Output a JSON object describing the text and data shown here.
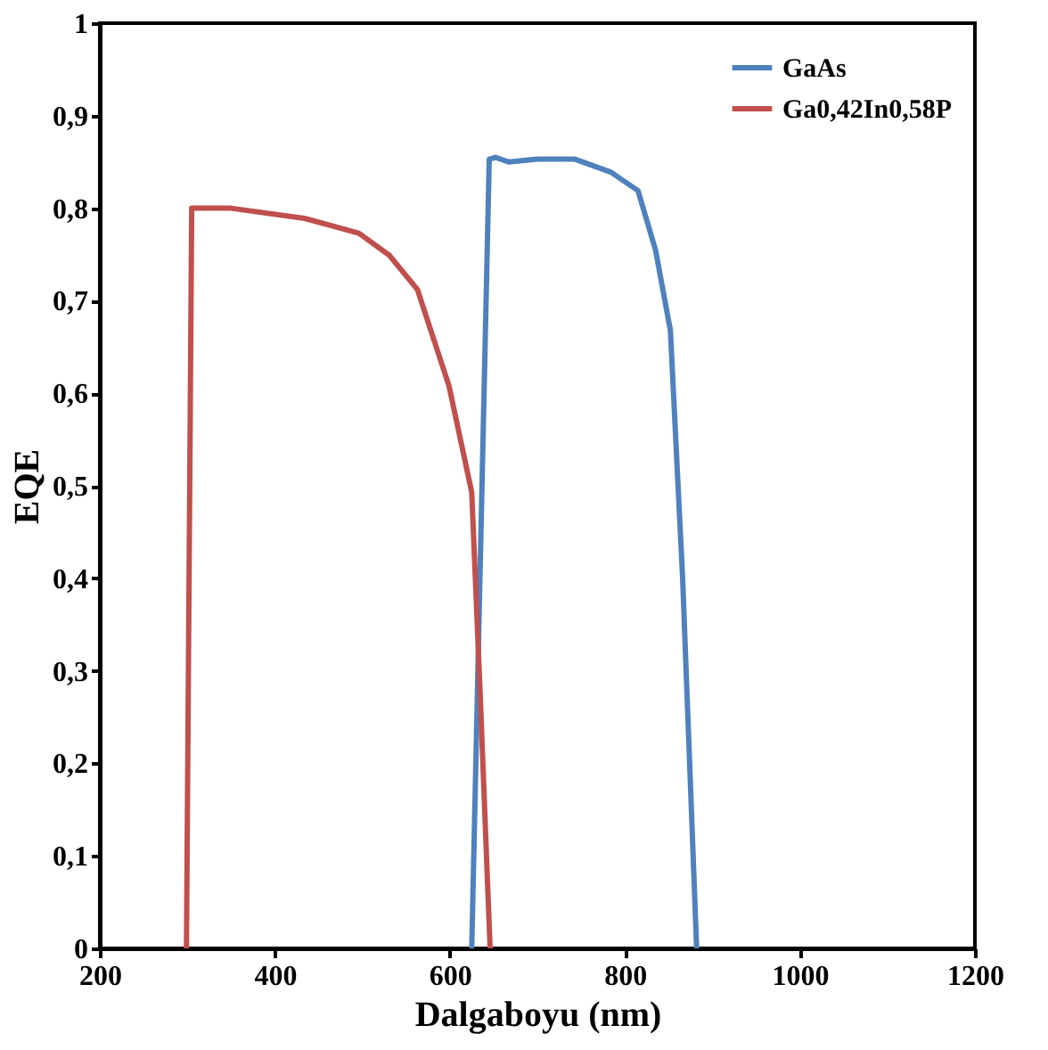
{
  "chart_data": {
    "type": "line",
    "xlabel": "Dalgaboyu (nm)",
    "ylabel": "EQE",
    "xlim": [
      200,
      1200
    ],
    "xticks": [
      200,
      400,
      600,
      800,
      1000,
      1200
    ],
    "ylim": [
      0,
      1
    ],
    "yticks": [
      0,
      {
        "value": 0.1,
        "label": "0,1"
      },
      {
        "value": 0.2,
        "label": "0,2"
      },
      {
        "value": 0.3,
        "label": "0,3"
      },
      {
        "value": 0.4,
        "label": "0,4"
      },
      {
        "value": 0.5,
        "label": "0,5"
      },
      {
        "value": 0.6,
        "label": "0,6"
      },
      {
        "value": 0.7,
        "label": "0,7"
      },
      {
        "value": 0.8,
        "label": "0,8"
      },
      {
        "value": 0.9,
        "label": "0,9"
      },
      1
    ],
    "grid": false,
    "legend": "top right",
    "marker": "none",
    "line_style": "solid",
    "series": [
      {
        "name": "GaAs",
        "color": "#4f81bd",
        "x": [
          625,
          645,
          652,
          667,
          700,
          743,
          784,
          815,
          835,
          852,
          866,
          882
        ],
        "values": [
          0,
          0.853,
          0.855,
          0.85,
          0.853,
          0.853,
          0.839,
          0.819,
          0.755,
          0.668,
          0.4,
          0
        ]
      },
      {
        "name": "Ga0,42In0,58P",
        "color": "#c0504d",
        "x": [
          299,
          305,
          350,
          434,
          496,
          531,
          563,
          599,
          625,
          634,
          646
        ],
        "values": [
          0,
          0.8,
          0.8,
          0.789,
          0.773,
          0.749,
          0.712,
          0.608,
          0.493,
          0.29,
          0
        ]
      }
    ]
  }
}
